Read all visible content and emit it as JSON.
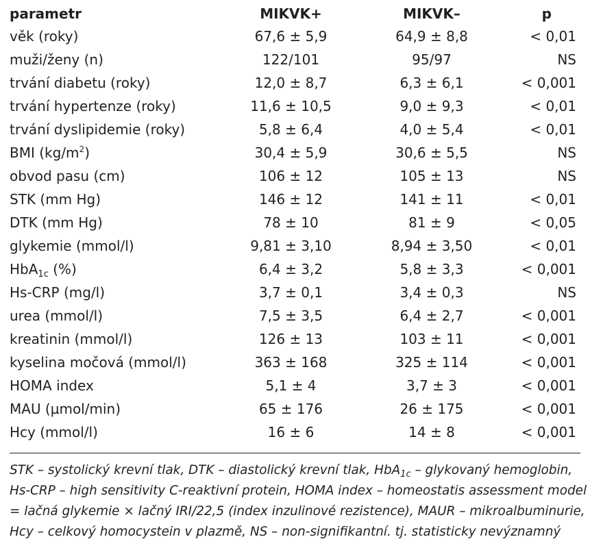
{
  "table": {
    "headers": {
      "param": "parametr",
      "plus": "MIKVK+",
      "minus": "MIKVK–",
      "p": "p"
    },
    "rows": [
      {
        "param": "věk (roky)",
        "plus": "67,6 ± 5,9",
        "minus": "64,9 ± 8,8",
        "p": "< 0,01"
      },
      {
        "param": "muži/ženy (n)",
        "plus": "122/101",
        "minus": "95/97",
        "p": "NS"
      },
      {
        "param": "trvání diabetu (roky)",
        "plus": "12,0 ± 8,7",
        "minus": "6,3 ± 6,1",
        "p": "< 0,001"
      },
      {
        "param": "trvání hypertenze (roky)",
        "plus": "11,6 ± 10,5",
        "minus": "9,0 ± 9,3",
        "p": "< 0,01"
      },
      {
        "param": "trvání dyslipidemie (roky)",
        "plus": "5,8 ± 6,4",
        "minus": "4,0 ± 5,4",
        "p": "< 0,01"
      },
      {
        "param_pre": "BMI (kg/m",
        "param_sup": "2",
        "param_post": ")",
        "plus": "30,4 ± 5,9",
        "minus": "30,6 ± 5,5",
        "p": "NS"
      },
      {
        "param": "obvod pasu (cm)",
        "plus": "106 ± 12",
        "minus": "105 ± 13",
        "p": "NS"
      },
      {
        "param": "STK (mm Hg)",
        "plus": "146 ± 12",
        "minus": "141 ± 11",
        "p": "< 0,01"
      },
      {
        "param": "DTK (mm Hg)",
        "plus": "78 ± 10",
        "minus": "81 ± 9",
        "p": "< 0,05"
      },
      {
        "param": "glykemie (mmol/l)",
        "plus": "9,81 ± 3,10",
        "minus": "8,94 ± 3,50",
        "p": "< 0,01"
      },
      {
        "param_pre": "HbA",
        "param_sub": "1c",
        "param_post": " (%)",
        "plus": "6,4 ± 3,2",
        "minus": "5,8 ± 3,3",
        "p": "< 0,001"
      },
      {
        "param": "Hs-CRP (mg/l)",
        "plus": "3,7 ± 0,1",
        "minus": "3,4 ± 0,3",
        "p": "NS"
      },
      {
        "param": "urea (mmol/l)",
        "plus": "7,5 ± 3,5",
        "minus": "6,4 ± 2,7",
        "p": "< 0,001"
      },
      {
        "param": "kreatinin (mmol/l)",
        "plus": "126 ± 13",
        "minus": "103 ± 11",
        "p": "< 0,001"
      },
      {
        "param": "kyselina močová (mmol/l)",
        "plus": "363 ± 168",
        "minus": "325 ± 114",
        "p": "< 0,001"
      },
      {
        "param": "HOMA index",
        "plus": "5,1 ± 4",
        "minus": "3,7 ± 3",
        "p": "< 0,001"
      },
      {
        "param": "MAU (µmol/min)",
        "plus": "65 ± 176",
        "minus": "26 ± 175",
        "p": "< 0,001"
      },
      {
        "param": "Hcy (mmol/l)",
        "plus": "16 ± 6",
        "minus": "14 ± 8",
        "p": "< 0,001"
      }
    ]
  },
  "footnote": {
    "line1_pre": "STK – systolický krevní tlak, DTK – diastolický krevní tlak, HbA",
    "line1_sub": "1c",
    "line1_post": " – glykovaný hemoglobin,",
    "line2": "Hs-CRP – high sensitivity C-reaktivní protein, HOMA index – homeostatis assessment model",
    "line3": "= lačná glykemie × lačný IRI/22,5 (index inzulinové rezistence), MAUR – mikroalbuminurie,",
    "line4": "Hcy – celkový homocystein v plazmě, NS – non-signifikantní. tj. statisticky nevýznamný"
  }
}
